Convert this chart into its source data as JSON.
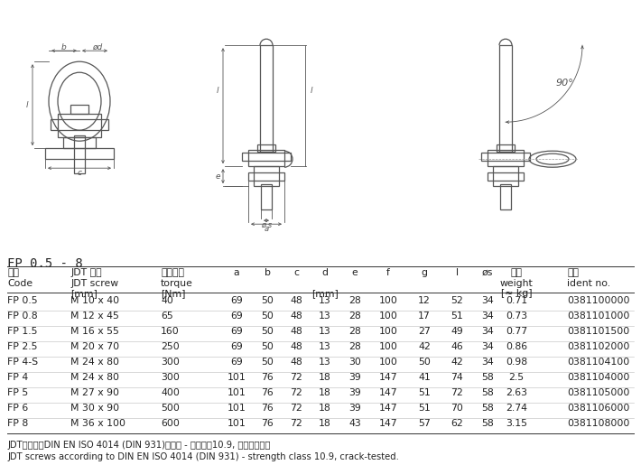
{
  "title": "FP 0.5 - 8",
  "header_row1_cn": [
    "型号",
    "JDT 螺栓",
    "拧紧力矩",
    "a",
    "b",
    "c",
    "d",
    "e",
    "f",
    "g",
    "l",
    "øs",
    "重量",
    "货号"
  ],
  "header_row2_en": [
    "Code",
    "JDT screw",
    "torque",
    "",
    "",
    "",
    "",
    "",
    "",
    "",
    "",
    "",
    "weight",
    "ident no."
  ],
  "header_row3_unit": [
    "",
    "[mm]",
    "[Nm]",
    "",
    "",
    "",
    "[mm]",
    "",
    "",
    "",
    "",
    "",
    "[≈ kg]",
    ""
  ],
  "rows": [
    [
      "FP 0.5",
      "M 10 x 40",
      "40",
      "69",
      "50",
      "48",
      "13",
      "28",
      "100",
      "12",
      "52",
      "34",
      "0.71",
      "0381100000"
    ],
    [
      "FP 0.8",
      "M 12 x 45",
      "65",
      "69",
      "50",
      "48",
      "13",
      "28",
      "100",
      "17",
      "51",
      "34",
      "0.73",
      "0381101000"
    ],
    [
      "FP 1.5",
      "M 16 x 55",
      "160",
      "69",
      "50",
      "48",
      "13",
      "28",
      "100",
      "27",
      "49",
      "34",
      "0.77",
      "0381101500"
    ],
    [
      "FP 2.5",
      "M 20 x 70",
      "250",
      "69",
      "50",
      "48",
      "13",
      "28",
      "100",
      "42",
      "46",
      "34",
      "0.86",
      "0381102000"
    ],
    [
      "FP 4-S",
      "M 24 x 80",
      "300",
      "69",
      "50",
      "48",
      "13",
      "30",
      "100",
      "50",
      "42",
      "34",
      "0.98",
      "0381104100"
    ],
    [
      "FP 4",
      "M 24 x 80",
      "300",
      "101",
      "76",
      "72",
      "18",
      "39",
      "147",
      "41",
      "74",
      "58",
      "2.5",
      "0381104000"
    ],
    [
      "FP 5",
      "M 27 x 90",
      "400",
      "101",
      "76",
      "72",
      "18",
      "39",
      "147",
      "51",
      "72",
      "58",
      "2.63",
      "0381105000"
    ],
    [
      "FP 6",
      "M 30 x 90",
      "500",
      "101",
      "76",
      "72",
      "18",
      "39",
      "147",
      "51",
      "70",
      "58",
      "2.74",
      "0381106000"
    ],
    [
      "FP 8",
      "M 36 x 100",
      "600",
      "101",
      "76",
      "72",
      "18",
      "43",
      "147",
      "57",
      "62",
      "58",
      "3.15",
      "0381108000"
    ]
  ],
  "note_cn": "JDT螺栓符合DIN EN ISO 4014 (DIN 931)的标准 - 强度等级10.9, 经裂纹测试。",
  "note_en": "JDT screws according to DIN EN ISO 4014 (DIN 931) - strength class 10.9, crack-tested.",
  "bg_color": "#ffffff",
  "lc": "#555555",
  "lc_dim": "#555555",
  "lc_dash": "#aaaaaa",
  "text_color": "#222222"
}
